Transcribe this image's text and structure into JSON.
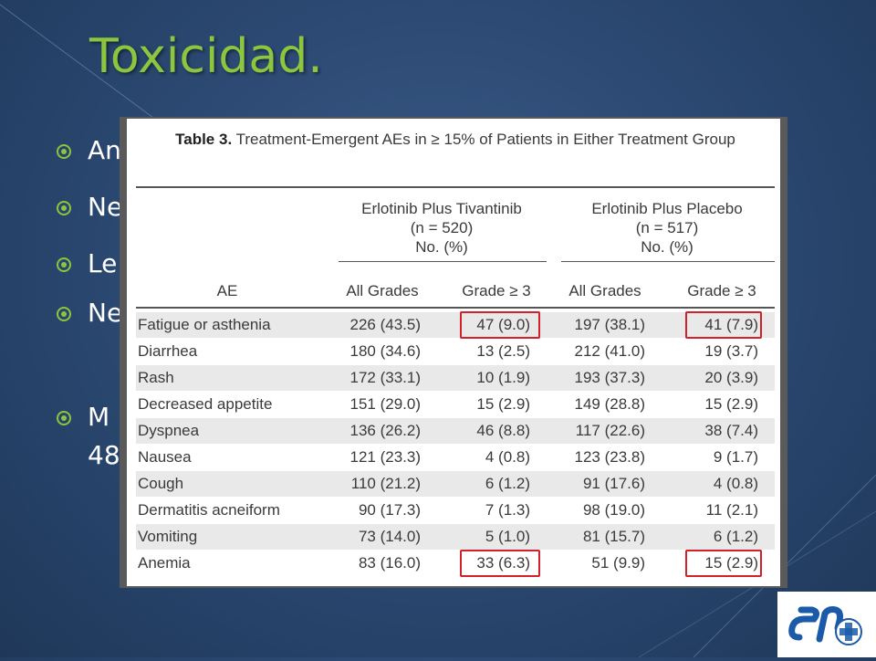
{
  "slide": {
    "title": "Toxicidad.",
    "bullets": [
      "An",
      "Ne",
      "Le",
      "Ne",
      "M",
      "48"
    ],
    "accent_color": "#8cc63f"
  },
  "table": {
    "caption_bold": "Table 3.",
    "caption_text": " Treatment-Emergent AEs in ≥ 15% of Patients in Either Treatment Group",
    "groups": [
      {
        "name": "Erlotinib Plus Tivantinib",
        "n": "(n = 520)",
        "unit": "No. (%)"
      },
      {
        "name": "Erlotinib Plus Placebo",
        "n": "(n = 517)",
        "unit": "No. (%)"
      }
    ],
    "columns": [
      "AE",
      "All Grades",
      "Grade ≥ 3",
      "All Grades",
      "Grade ≥ 3"
    ],
    "rows": [
      {
        "ae": "Fatigue or asthenia",
        "v": [
          "226 (43.5)",
          "47 (9.0)",
          "197 (38.1)",
          "41 (7.9)"
        ],
        "highlight": true
      },
      {
        "ae": "Diarrhea",
        "v": [
          "180 (34.6)",
          "13 (2.5)",
          "212 (41.0)",
          "19 (3.7)"
        ]
      },
      {
        "ae": "Rash",
        "v": [
          "172 (33.1)",
          "10 (1.9)",
          "193 (37.3)",
          "20 (3.9)"
        ]
      },
      {
        "ae": "Decreased appetite",
        "v": [
          "151 (29.0)",
          "15 (2.9)",
          "149 (28.8)",
          "15 (2.9)"
        ]
      },
      {
        "ae": "Dyspnea",
        "v": [
          "136 (26.2)",
          "46 (8.8)",
          "117 (22.6)",
          "38 (7.4)"
        ]
      },
      {
        "ae": "Nausea",
        "v": [
          "121 (23.3)",
          "4 (0.8)",
          "123 (23.8)",
          "9 (1.7)"
        ]
      },
      {
        "ae": "Cough",
        "v": [
          "110 (21.2)",
          "6 (1.2)",
          "91 (17.6)",
          "4 (0.8)"
        ]
      },
      {
        "ae": "Dermatitis acneiform",
        "v": [
          "90 (17.3)",
          "7 (1.3)",
          "98 (19.0)",
          "11 (2.1)"
        ]
      },
      {
        "ae": "Vomiting",
        "v": [
          "73 (14.0)",
          "5 (1.0)",
          "81 (15.7)",
          "6 (1.2)"
        ]
      },
      {
        "ae": "Anemia",
        "v": [
          "83 (16.0)",
          "33 (6.3)",
          "51 (9.9)",
          "15 (2.9)"
        ],
        "highlight": true
      }
    ],
    "highlight_color": "#d4202a"
  },
  "logo": {
    "name": "hospital-logo-icon",
    "color": "#1a5aa8"
  }
}
